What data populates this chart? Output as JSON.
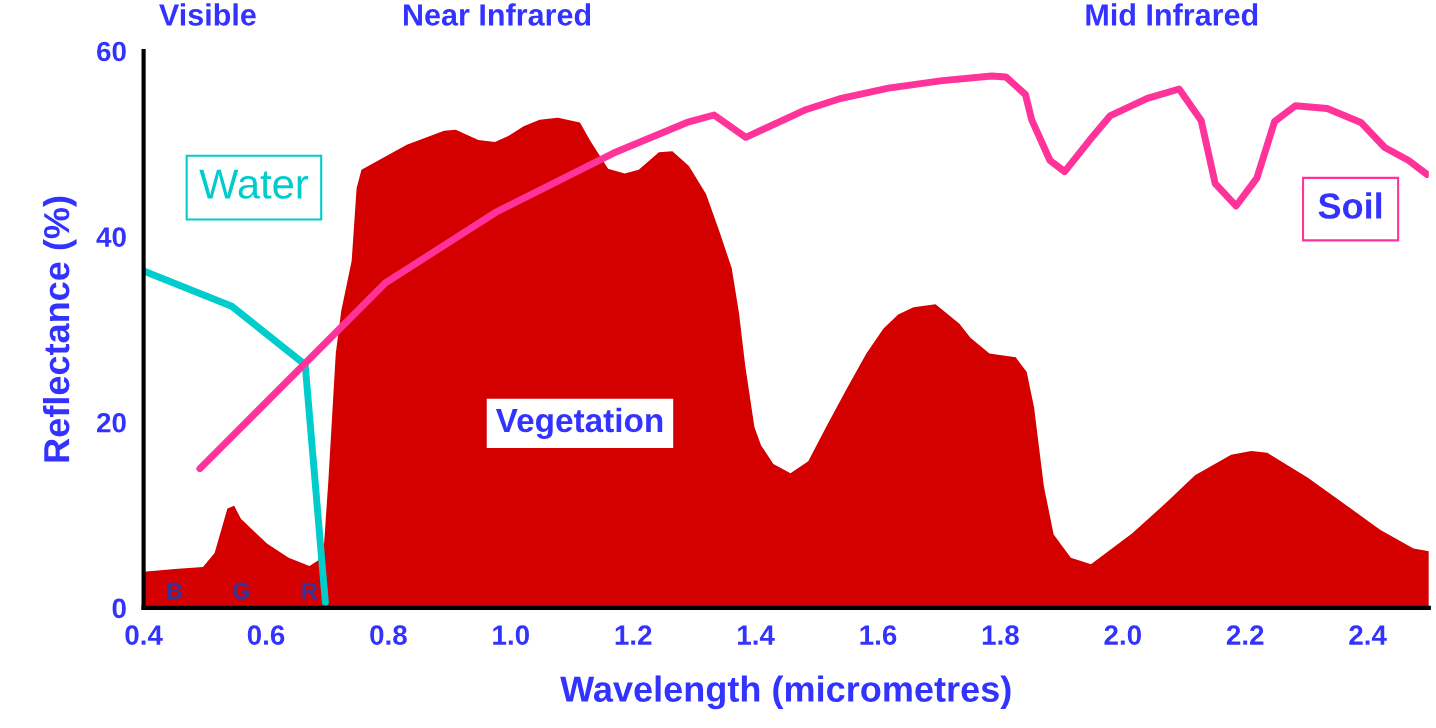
{
  "chart_data": {
    "type": "line",
    "xlabel": "Wavelength (micrometres)",
    "ylabel": "Reflectance (%)",
    "xlim": [
      0.4,
      2.5
    ],
    "xticks": [
      0.4,
      0.6,
      0.8,
      {
        "value": 1,
        "label": "1.0"
      },
      1.2,
      1.4,
      1.6,
      1.8,
      {
        "value": 2,
        "label": "2.0"
      },
      2.2,
      2.4
    ],
    "ylim": [
      0,
      60
    ],
    "yticks": [
      0,
      20,
      40,
      60
    ],
    "grid": false,
    "legend": false,
    "marker": "none",
    "series": [
      {
        "name": "Vegetation",
        "type": "area",
        "color": "#d40000",
        "x": [
          0.4,
          0.451,
          0.497,
          0.516,
          0.537,
          0.548,
          0.559,
          0.602,
          0.637,
          0.671,
          0.685,
          0.695,
          0.702,
          0.714,
          0.723,
          0.74,
          0.748,
          0.756,
          0.83,
          0.891,
          0.91,
          0.947,
          0.974,
          0.995,
          1.021,
          1.047,
          1.077,
          1.113,
          1.13,
          1.159,
          1.186,
          1.209,
          1.242,
          1.264,
          1.291,
          1.319,
          1.34,
          1.361,
          1.373,
          1.383,
          1.398,
          1.409,
          1.429,
          1.457,
          1.486,
          1.517,
          1.548,
          1.581,
          1.609,
          1.633,
          1.658,
          1.694,
          1.733,
          1.751,
          1.782,
          1.825,
          1.843,
          1.855,
          1.871,
          1.887,
          1.915,
          1.948,
          2.015,
          2.072,
          2.118,
          2.177,
          2.21,
          2.236,
          2.303,
          2.421,
          2.475,
          2.5
        ],
        "values": [
          3.9,
          4.2,
          4.4,
          5.9,
          10.7,
          11.0,
          9.6,
          6.9,
          5.4,
          4.5,
          5.1,
          7.0,
          13.8,
          27.4,
          32.0,
          37.4,
          45.2,
          47.2,
          49.9,
          51.4,
          51.5,
          50.4,
          50.2,
          50.8,
          51.9,
          52.6,
          52.8,
          52.3,
          50.3,
          47.3,
          46.8,
          47.2,
          49.1,
          49.2,
          47.6,
          44.6,
          40.7,
          36.6,
          31.7,
          26.1,
          19.5,
          17.5,
          15.5,
          14.5,
          15.8,
          19.7,
          23.5,
          27.4,
          30.1,
          31.6,
          32.4,
          32.7,
          30.6,
          29.1,
          27.4,
          27.0,
          25.4,
          21.6,
          13.1,
          7.9,
          5.4,
          4.7,
          8.0,
          11.4,
          14.3,
          16.5,
          16.9,
          16.7,
          14.0,
          8.4,
          6.4,
          6.1
        ]
      },
      {
        "name": "Water",
        "color": "#00cccc",
        "x": [
          0.4,
          0.544,
          0.664,
          0.697
        ],
        "values": [
          36.3,
          32.5,
          26.2,
          0.6
        ]
      },
      {
        "name": "Soil",
        "color": "#ff3399",
        "x": [
          0.492,
          0.795,
          0.975,
          1.168,
          1.288,
          1.332,
          1.384,
          1.483,
          1.54,
          1.617,
          1.705,
          1.786,
          1.809,
          1.841,
          1.851,
          1.881,
          1.905,
          1.946,
          1.979,
          2.04,
          2.092,
          2.128,
          2.151,
          2.185,
          2.219,
          2.248,
          2.282,
          2.334,
          2.389,
          2.428,
          2.467,
          2.497
        ],
        "values": [
          15.0,
          35.0,
          42.6,
          49.0,
          52.3,
          53.1,
          50.7,
          53.7,
          54.9,
          56.0,
          56.8,
          57.3,
          57.2,
          55.3,
          52.6,
          48.2,
          47.0,
          50.4,
          53.0,
          54.9,
          55.9,
          52.5,
          45.7,
          43.3,
          46.3,
          52.4,
          54.1,
          53.8,
          52.3,
          49.6,
          48.2,
          46.7
        ]
      }
    ],
    "annotations": [
      "Visible",
      "Near Infrared",
      "Mid Infrared",
      "B",
      "G",
      "R"
    ]
  }
}
